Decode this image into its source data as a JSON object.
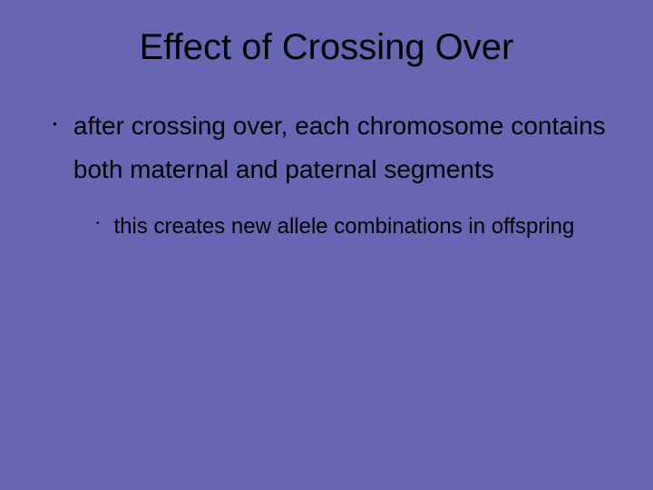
{
  "background_color": "#6666b3",
  "text_color": "#000000",
  "title": {
    "text": "Effect of Crossing Over",
    "fontsize": 40,
    "fontweight": 400,
    "align": "center"
  },
  "bullets": {
    "level1": {
      "marker": "•",
      "fontsize": 28,
      "lineheight": 1.7,
      "items": [
        {
          "text": "after crossing over, each chromosome contains both maternal and paternal segments"
        }
      ]
    },
    "level2": {
      "marker": "•",
      "fontsize": 24,
      "lineheight": 1.85,
      "items": [
        {
          "text": "this creates new allele combinations in offspring"
        }
      ]
    }
  }
}
